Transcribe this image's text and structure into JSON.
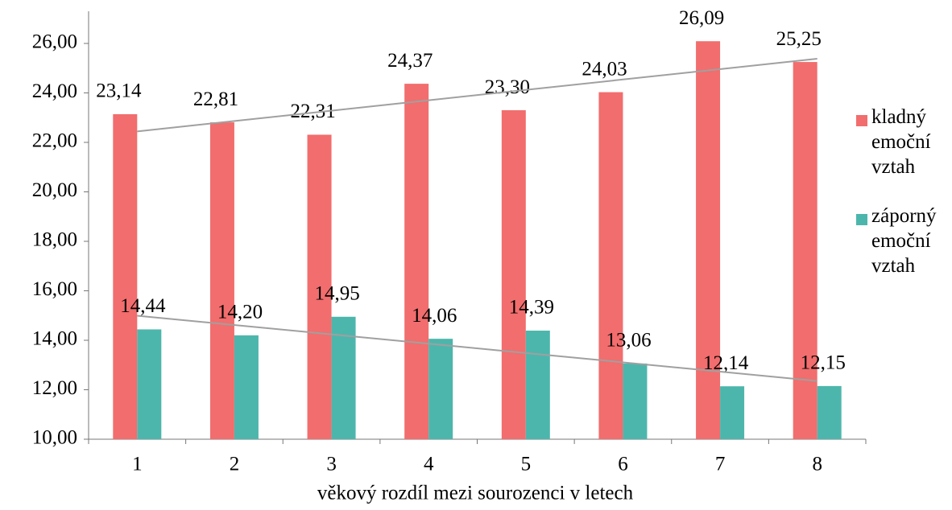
{
  "chart_data": {
    "type": "bar",
    "x_label": "věkový rozdíl mezi sourozenci v letech",
    "categories": [
      "1",
      "2",
      "3",
      "4",
      "5",
      "6",
      "7",
      "8"
    ],
    "series": [
      {
        "name": "kladný emoční vztah",
        "color": "#f26d6d",
        "values": [
          23.14,
          22.81,
          22.31,
          24.37,
          23.3,
          24.03,
          26.09,
          25.25
        ],
        "value_labels": [
          "23,14",
          "22,81",
          "22,31",
          "24,37",
          "23,30",
          "24,03",
          "26,09",
          "25,25"
        ]
      },
      {
        "name": "záporný emoční vztah",
        "color": "#4db6ac",
        "values": [
          14.44,
          14.2,
          14.95,
          14.06,
          14.39,
          13.06,
          12.14,
          12.15
        ],
        "value_labels": [
          "14,44",
          "14,20",
          "14,95",
          "14,06",
          "14,39",
          "13,06",
          "12,14",
          "12,15"
        ]
      }
    ],
    "ylim": [
      10,
      26
    ],
    "yticks": [
      {
        "value": 10,
        "label": "10,00"
      },
      {
        "value": 12,
        "label": "12,00"
      },
      {
        "value": 14,
        "label": "14,00"
      },
      {
        "value": 16,
        "label": "16,00"
      },
      {
        "value": 18,
        "label": "18,00"
      },
      {
        "value": 20,
        "label": "20,00"
      },
      {
        "value": 22,
        "label": "22,00"
      },
      {
        "value": 24,
        "label": "24,00"
      },
      {
        "value": 26,
        "label": "26,00"
      }
    ],
    "trendline": true,
    "legend": "right",
    "trendline_color": "#a0a0a0"
  }
}
